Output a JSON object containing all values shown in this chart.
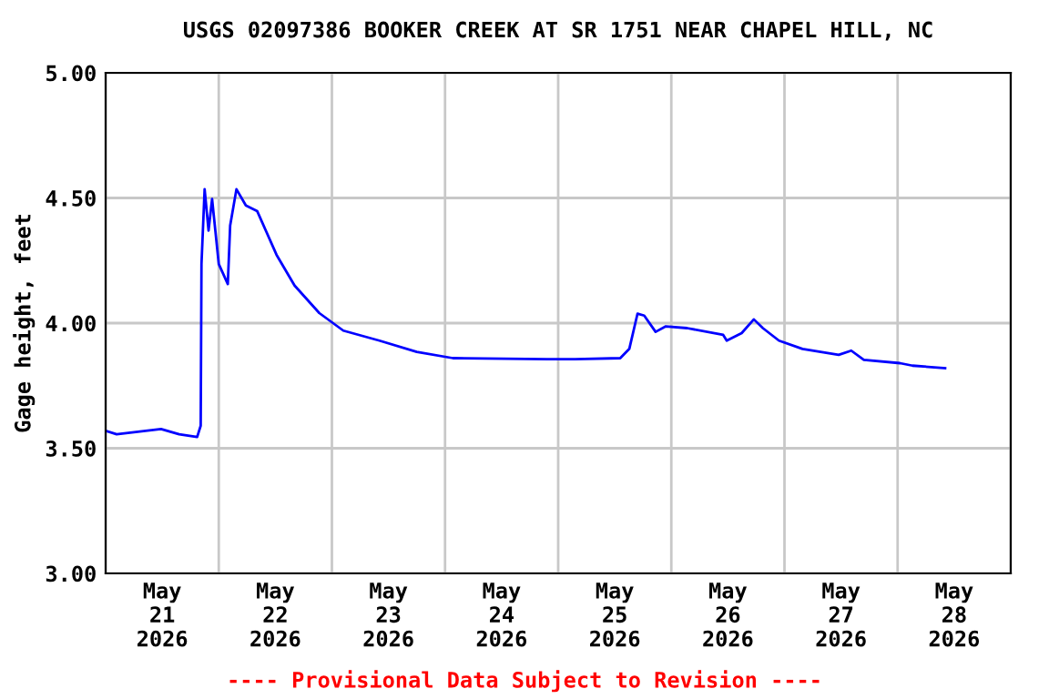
{
  "chart_data": {
    "type": "line",
    "title": "USGS 02097386 BOOKER CREEK AT SR 1751 NEAR CHAPEL HILL, NC",
    "ylabel": "Gage height, feet",
    "x": [
      "2026-05-21T00:00",
      "2026-05-21T02:20",
      "2026-05-21T11:45",
      "2026-05-21T15:35",
      "2026-05-21T19:25",
      "2026-05-21T20:10",
      "2026-05-21T20:20",
      "2026-05-21T21:00",
      "2026-05-21T21:50",
      "2026-05-21T22:35",
      "2026-05-22T00:00",
      "2026-05-22T01:55",
      "2026-05-22T02:25",
      "2026-05-22T03:45",
      "2026-05-22T05:45",
      "2026-05-22T08:10",
      "2026-05-22T12:15",
      "2026-05-22T16:05",
      "2026-05-22T21:20",
      "2026-05-23T02:25",
      "2026-05-23T10:05",
      "2026-05-23T18:00",
      "2026-05-24T01:40",
      "2026-05-24T21:35",
      "2026-05-25T03:35",
      "2026-05-25T13:10",
      "2026-05-25T15:05",
      "2026-05-25T16:50",
      "2026-05-25T18:15",
      "2026-05-25T20:40",
      "2026-05-25T22:50",
      "2026-05-26T03:20",
      "2026-05-26T11:00",
      "2026-05-26T11:45",
      "2026-05-26T14:55",
      "2026-05-26T17:30",
      "2026-05-26T19:25",
      "2026-05-26T22:50",
      "2026-05-27T03:50",
      "2026-05-27T11:30",
      "2026-05-27T14:10",
      "2026-05-27T16:50",
      "2026-05-28T00:30",
      "2026-05-28T03:10",
      "2026-05-28T10:05"
    ],
    "series": [
      {
        "color": "#0000ff",
        "values": [
          3.57,
          3.556,
          3.577,
          3.556,
          3.545,
          3.59,
          4.236,
          4.535,
          4.37,
          4.496,
          4.236,
          4.156,
          4.39,
          4.535,
          4.47,
          4.447,
          4.273,
          4.15,
          4.04,
          3.97,
          3.93,
          3.885,
          3.86,
          3.856,
          3.856,
          3.86,
          3.897,
          4.038,
          4.03,
          3.965,
          3.987,
          3.98,
          3.953,
          3.93,
          3.96,
          4.015,
          3.98,
          3.93,
          3.897,
          3.873,
          3.89,
          3.853,
          3.84,
          3.83,
          3.82
        ]
      }
    ],
    "xlim": [
      "2026-05-21T00:00",
      "2026-05-29T00:00"
    ],
    "xticks": [
      {
        "value": "2026-05-21T00:00",
        "label": null
      },
      {
        "value": "2026-05-21T12:00",
        "label": "May\n21\n2026"
      },
      {
        "value": "2026-05-22T00:00",
        "label": null
      },
      {
        "value": "2026-05-22T12:00",
        "label": "May\n22\n2026"
      },
      {
        "value": "2026-05-23T00:00",
        "label": null
      },
      {
        "value": "2026-05-23T12:00",
        "label": "May\n23\n2026"
      },
      {
        "value": "2026-05-24T00:00",
        "label": null
      },
      {
        "value": "2026-05-24T12:00",
        "label": "May\n24\n2026"
      },
      {
        "value": "2026-05-25T00:00",
        "label": null
      },
      {
        "value": "2026-05-25T12:00",
        "label": "May\n25\n2026"
      },
      {
        "value": "2026-05-26T00:00",
        "label": null
      },
      {
        "value": "2026-05-26T12:00",
        "label": "May\n26\n2026"
      },
      {
        "value": "2026-05-27T00:00",
        "label": null
      },
      {
        "value": "2026-05-27T12:00",
        "label": "May\n27\n2026"
      },
      {
        "value": "2026-05-28T00:00",
        "label": null
      },
      {
        "value": "2026-05-28T12:00",
        "label": "May\n28\n2026"
      },
      {
        "value": "2026-05-29T00:00",
        "label": null
      }
    ],
    "ylim": [
      3.0,
      5.0
    ],
    "yticks": [
      {
        "value": 3.0,
        "label": "3.00"
      },
      {
        "value": 3.5,
        "label": "3.50"
      },
      {
        "value": 4.0,
        "label": "4.00"
      },
      {
        "value": 4.5,
        "label": "4.50"
      },
      {
        "value": 5.0,
        "label": "5.00"
      }
    ],
    "grid": true,
    "legend": false,
    "marker": "none",
    "line_style": "solid",
    "annotations": [
      "---- Provisional Data Subject to Revision ----"
    ]
  }
}
